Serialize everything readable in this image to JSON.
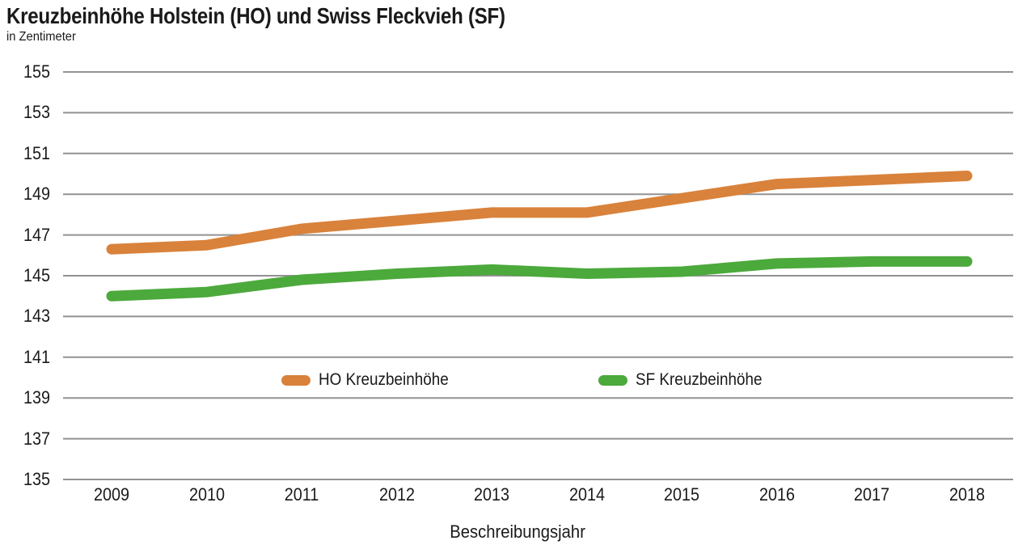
{
  "header": {
    "title": "Kreuzbeinhöhe Holstein (HO) und Swiss Fleckvieh (SF)",
    "subtitle": "in Zentimeter"
  },
  "colors": {
    "background": "#FFFFFF",
    "grid": "#929292",
    "text": "#1A1A1A",
    "ho_orange": "#D9823B",
    "sf_green": "#4CA93C"
  },
  "chart_data": {
    "type": "line",
    "title": "Kreuzbeinhöhe Holstein (HO) und Swiss Fleckvieh (SF)",
    "subtitle": "in Zentimeter",
    "xlabel": "Beschreibungsjahr",
    "ylabel": "in Zentimeter",
    "x": [
      2009,
      2010,
      2011,
      2012,
      2013,
      2014,
      2015,
      2016,
      2017,
      2018
    ],
    "series": [
      {
        "name": "HO Kreuzbeinhöhe",
        "color": "#D9823B",
        "values": [
          146.3,
          146.5,
          147.3,
          147.7,
          148.1,
          148.1,
          148.8,
          149.5,
          149.7,
          149.9
        ]
      },
      {
        "name": "SF Kreuzbeinhöhe",
        "color": "#4CA93C",
        "values": [
          144.0,
          144.2,
          144.8,
          145.1,
          145.3,
          145.1,
          145.2,
          145.6,
          145.7,
          145.7
        ]
      }
    ],
    "ylim": [
      135,
      155
    ],
    "ytick_step": 2,
    "yticks": [
      135,
      137,
      139,
      141,
      143,
      145,
      147,
      149,
      151,
      153,
      155
    ],
    "grid": true,
    "legend_position": "inside-middle"
  }
}
